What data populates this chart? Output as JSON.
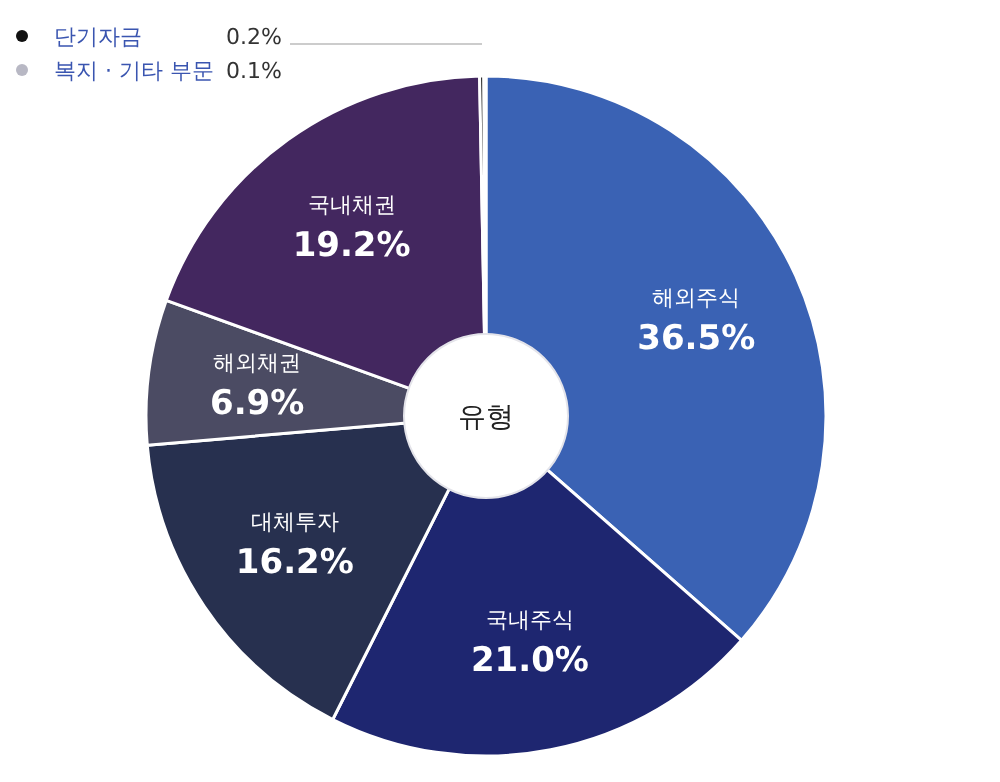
{
  "chart_data": {
    "type": "donut",
    "title": "유형",
    "categories": [
      "해외주식",
      "국내주식",
      "대체투자",
      "해외채권",
      "국내채권",
      "단기자금",
      "복지 · 기타 부문"
    ],
    "values": [
      36.5,
      21.0,
      16.2,
      6.9,
      19.2,
      0.2,
      0.1
    ],
    "colors": [
      "#3a62b4",
      "#1e2670",
      "#27304f",
      "#4b4b63",
      "#43275f",
      "#111111",
      "#b8b8c4"
    ],
    "legend": "top left",
    "value_labels": [
      "36.5%",
      "21.0%",
      "16.2%",
      "6.9%",
      "19.2%",
      "0.2%",
      "0.1%"
    ]
  }
}
